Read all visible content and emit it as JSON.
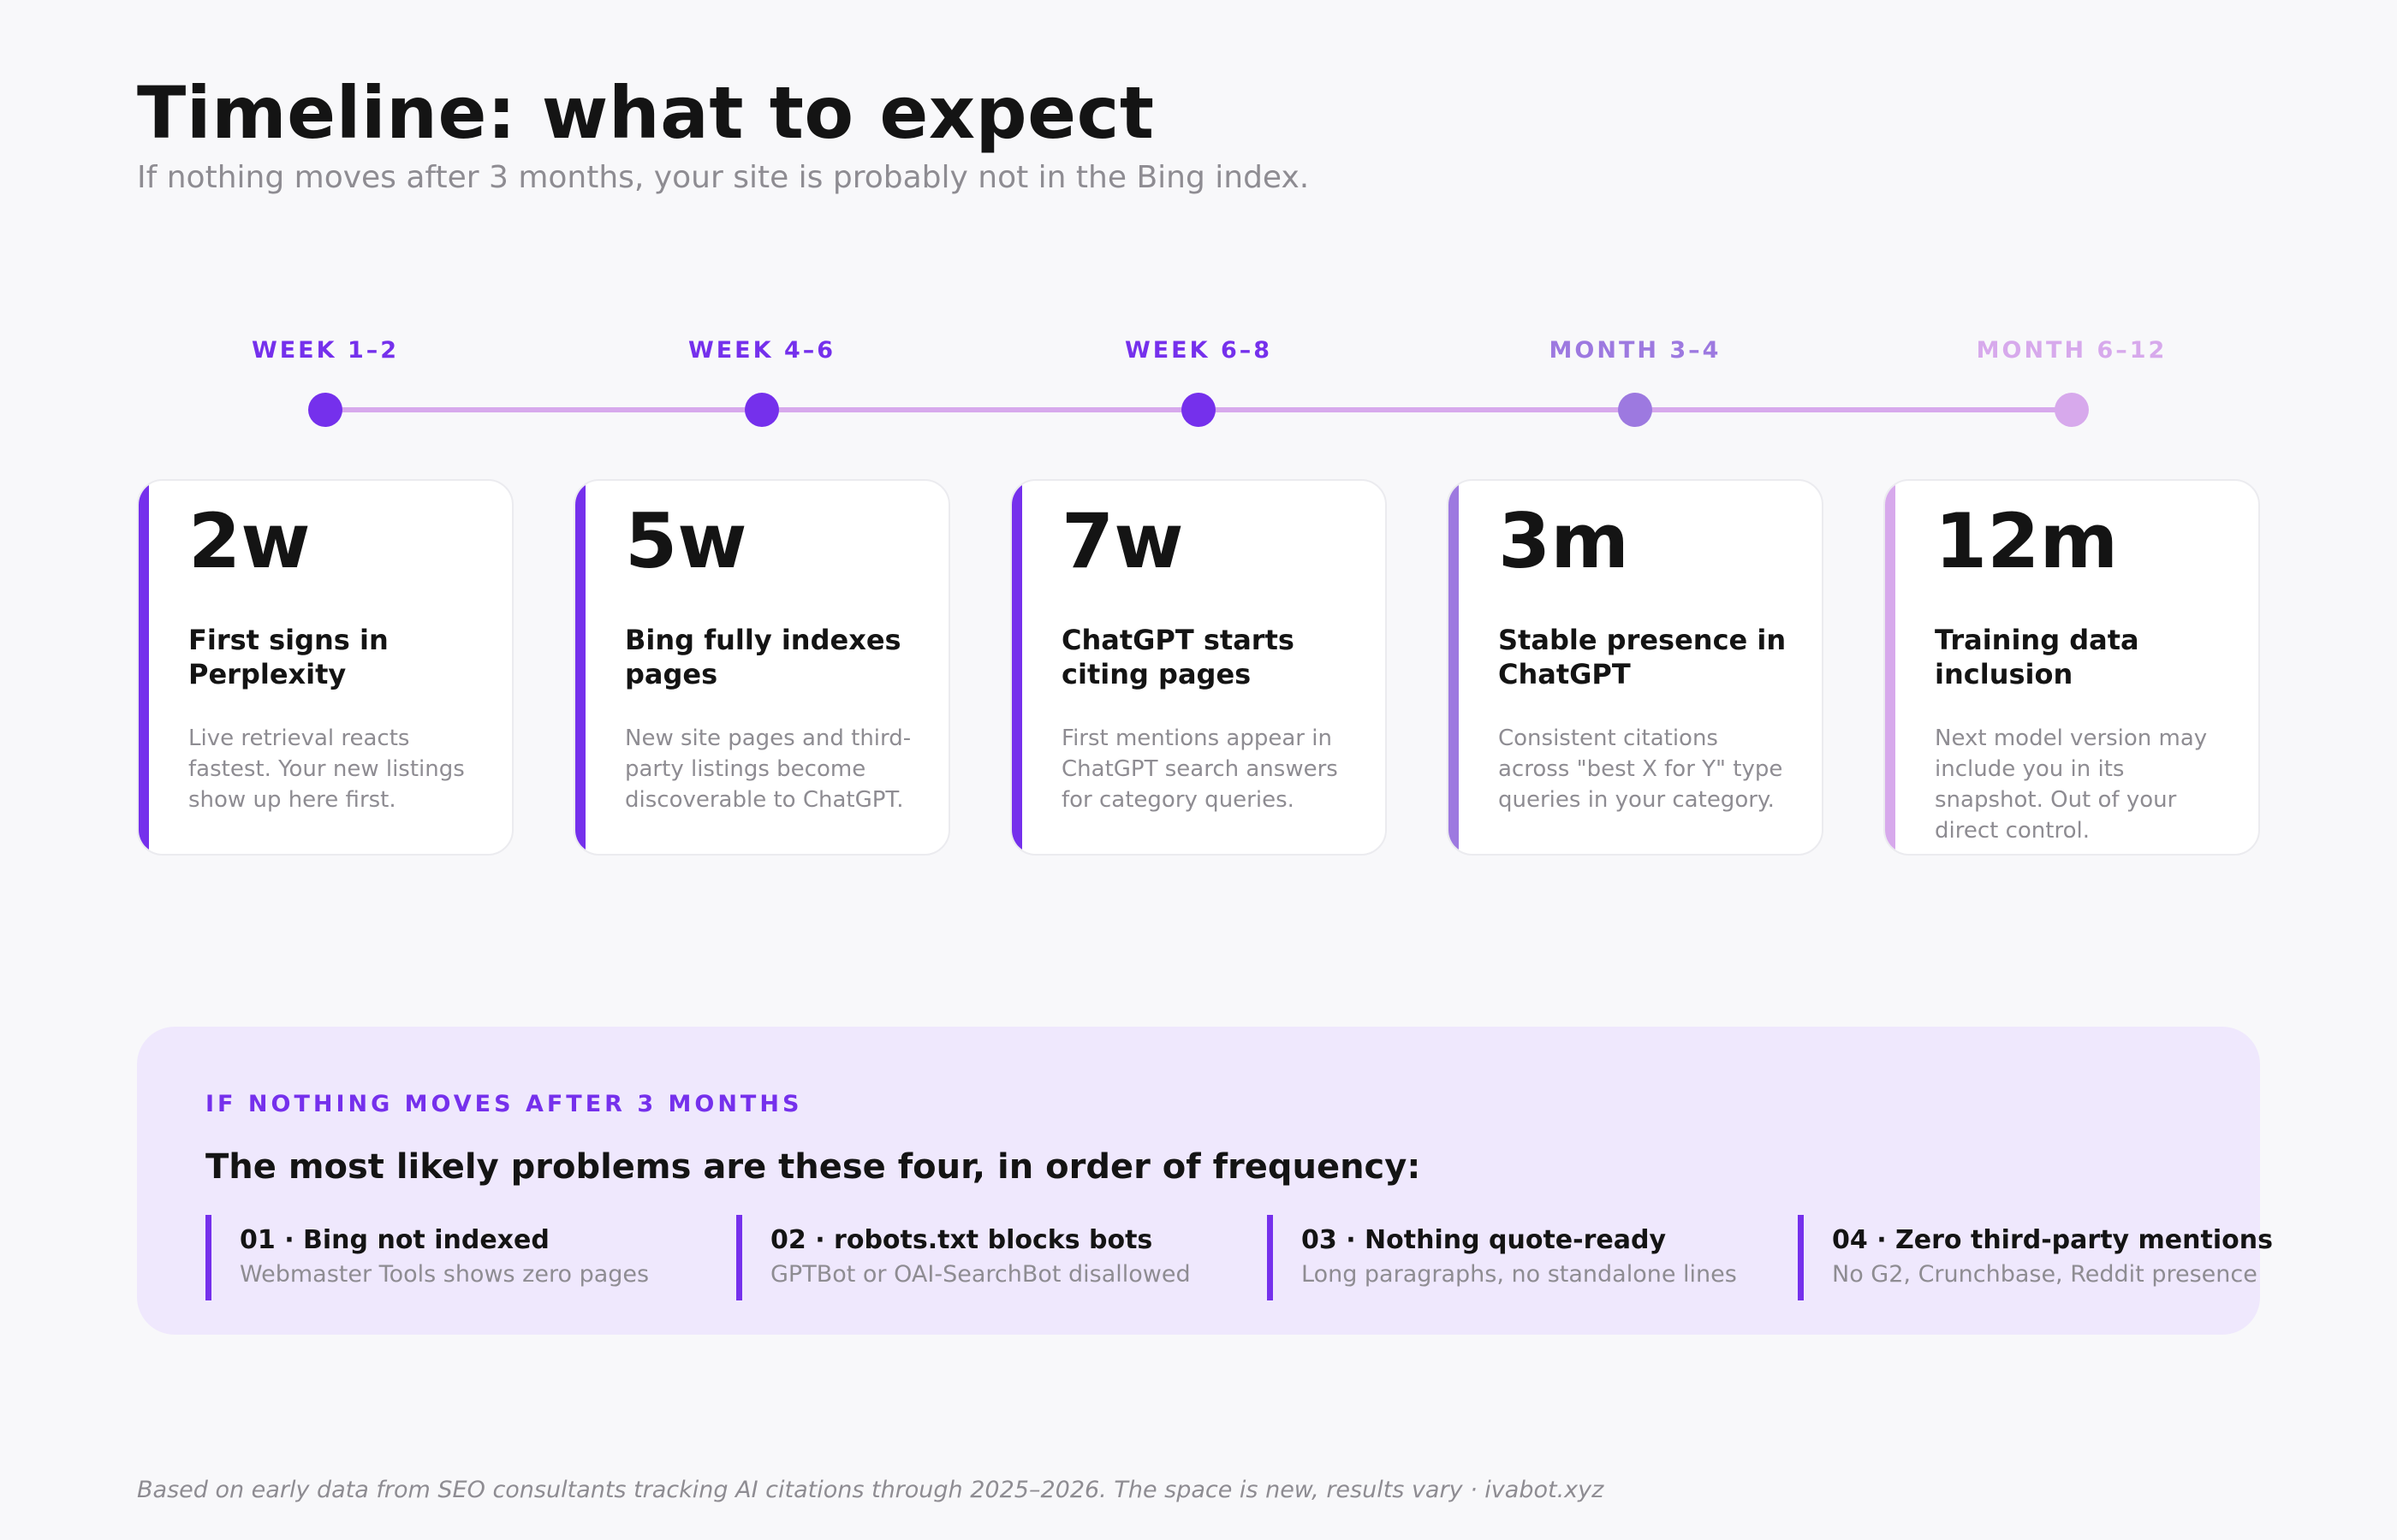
{
  "header": {
    "title": "Timeline: what to expect",
    "subtitle": "If nothing moves after 3 months, your site is probably not in the Bing index."
  },
  "colors": {
    "accent_strong": "#7530ec",
    "accent_medium": "#9d79e0",
    "accent_light": "#d7a9ec",
    "timeline_line": "#d7a9ec",
    "panel_background": "#efe8fd"
  },
  "stages": [
    {
      "period": "WEEK 1–2",
      "value": "2w",
      "heading": "First signs in Perplexity",
      "description": "Live retrieval reacts fastest. Your new listings show up here first.",
      "color": "#7530ec"
    },
    {
      "period": "WEEK 4–6",
      "value": "5w",
      "heading": "Bing fully indexes pages",
      "description": "New site pages and third-party listings become discoverable to ChatGPT.",
      "color": "#7530ec"
    },
    {
      "period": "WEEK 6–8",
      "value": "7w",
      "heading": "ChatGPT starts citing pages",
      "description": "First mentions appear in ChatGPT search answers for category queries.",
      "color": "#7530ec"
    },
    {
      "period": "MONTH 3–4",
      "value": "3m",
      "heading": "Stable presence in ChatGPT",
      "description": "Consistent citations across \"best X for Y\" type queries in your category.",
      "color": "#9d79e0"
    },
    {
      "period": "MONTH 6–12",
      "value": "12m",
      "heading": "Training data inclusion",
      "description": "Next model version may include you in its snapshot. Out of your direct control.",
      "color": "#d7a9ec"
    }
  ],
  "problems": {
    "kicker": "IF NOTHING MOVES AFTER 3 MONTHS",
    "heading": "The most likely problems are these four, in order of frequency:",
    "items": [
      {
        "title": "01 · Bing not indexed",
        "description": "Webmaster Tools shows zero pages"
      },
      {
        "title": "02 · robots.txt blocks bots",
        "description": "GPTBot or OAI-SearchBot disallowed"
      },
      {
        "title": "03 · Nothing quote-ready",
        "description": "Long paragraphs, no standalone lines"
      },
      {
        "title": "04 · Zero third-party mentions",
        "description": "No G2, Crunchbase, Reddit presence"
      }
    ]
  },
  "footer": {
    "note": "Based on early data from SEO consultants tracking AI citations through 2025–2026. The space is new, results vary · ivabot.xyz"
  }
}
